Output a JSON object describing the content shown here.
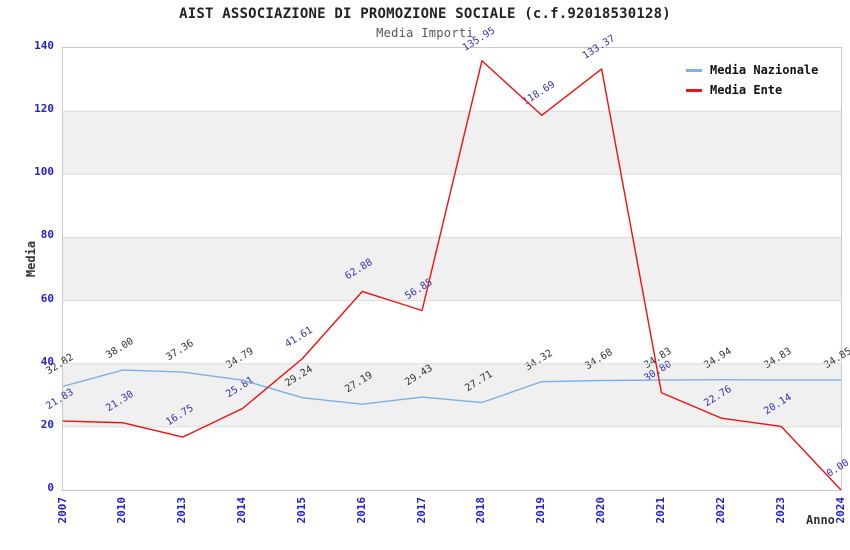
{
  "title": "AIST ASSOCIAZIONE DI PROMOZIONE SOCIALE (c.f.92018530128)",
  "subtitle": "Media Importi",
  "legend": {
    "items": [
      {
        "label": "Media Nazionale",
        "color": "#7db1e3"
      },
      {
        "label": "Media Ente",
        "color": "#ee1111"
      }
    ],
    "position": "top-right"
  },
  "colors": {
    "tick_label": "#2222cc",
    "band_gray": "#f0f0f0",
    "band_white": "#ffffff",
    "gridline": "#dcdcdc",
    "plot_border": "#c8c8c8"
  },
  "chart_data": {
    "type": "line",
    "x": [
      "2007",
      "2010",
      "2013",
      "2014",
      "2015",
      "2016",
      "2017",
      "2018",
      "2019",
      "2020",
      "2021",
      "2022",
      "2023",
      "2024"
    ],
    "series": [
      {
        "name": "Media Nazionale",
        "color": "#7db1e3",
        "label_color": "#333333",
        "values": [
          32.82,
          38.0,
          37.36,
          34.79,
          29.24,
          27.19,
          29.43,
          27.71,
          34.32,
          34.68,
          34.83,
          34.94,
          34.83,
          34.85
        ]
      },
      {
        "name": "Media Ente",
        "color": "#ee1111",
        "label_color": "#3333ad",
        "values": [
          21.83,
          21.3,
          16.75,
          25.81,
          41.61,
          62.88,
          56.85,
          135.95,
          118.69,
          133.37,
          30.8,
          22.76,
          20.14,
          0.0
        ]
      }
    ],
    "title": "AIST ASSOCIAZIONE DI PROMOZIONE SOCIALE (c.f.92018530128)",
    "subtitle": "Media Importi",
    "xlabel": "Anno",
    "ylabel": "Media",
    "ylim": [
      0,
      140
    ],
    "yticks": [
      0,
      20,
      40,
      60,
      80,
      100,
      120,
      140
    ],
    "grid": true,
    "banded_background": true,
    "point_labels_visible": true,
    "legend_position": "top-right"
  }
}
